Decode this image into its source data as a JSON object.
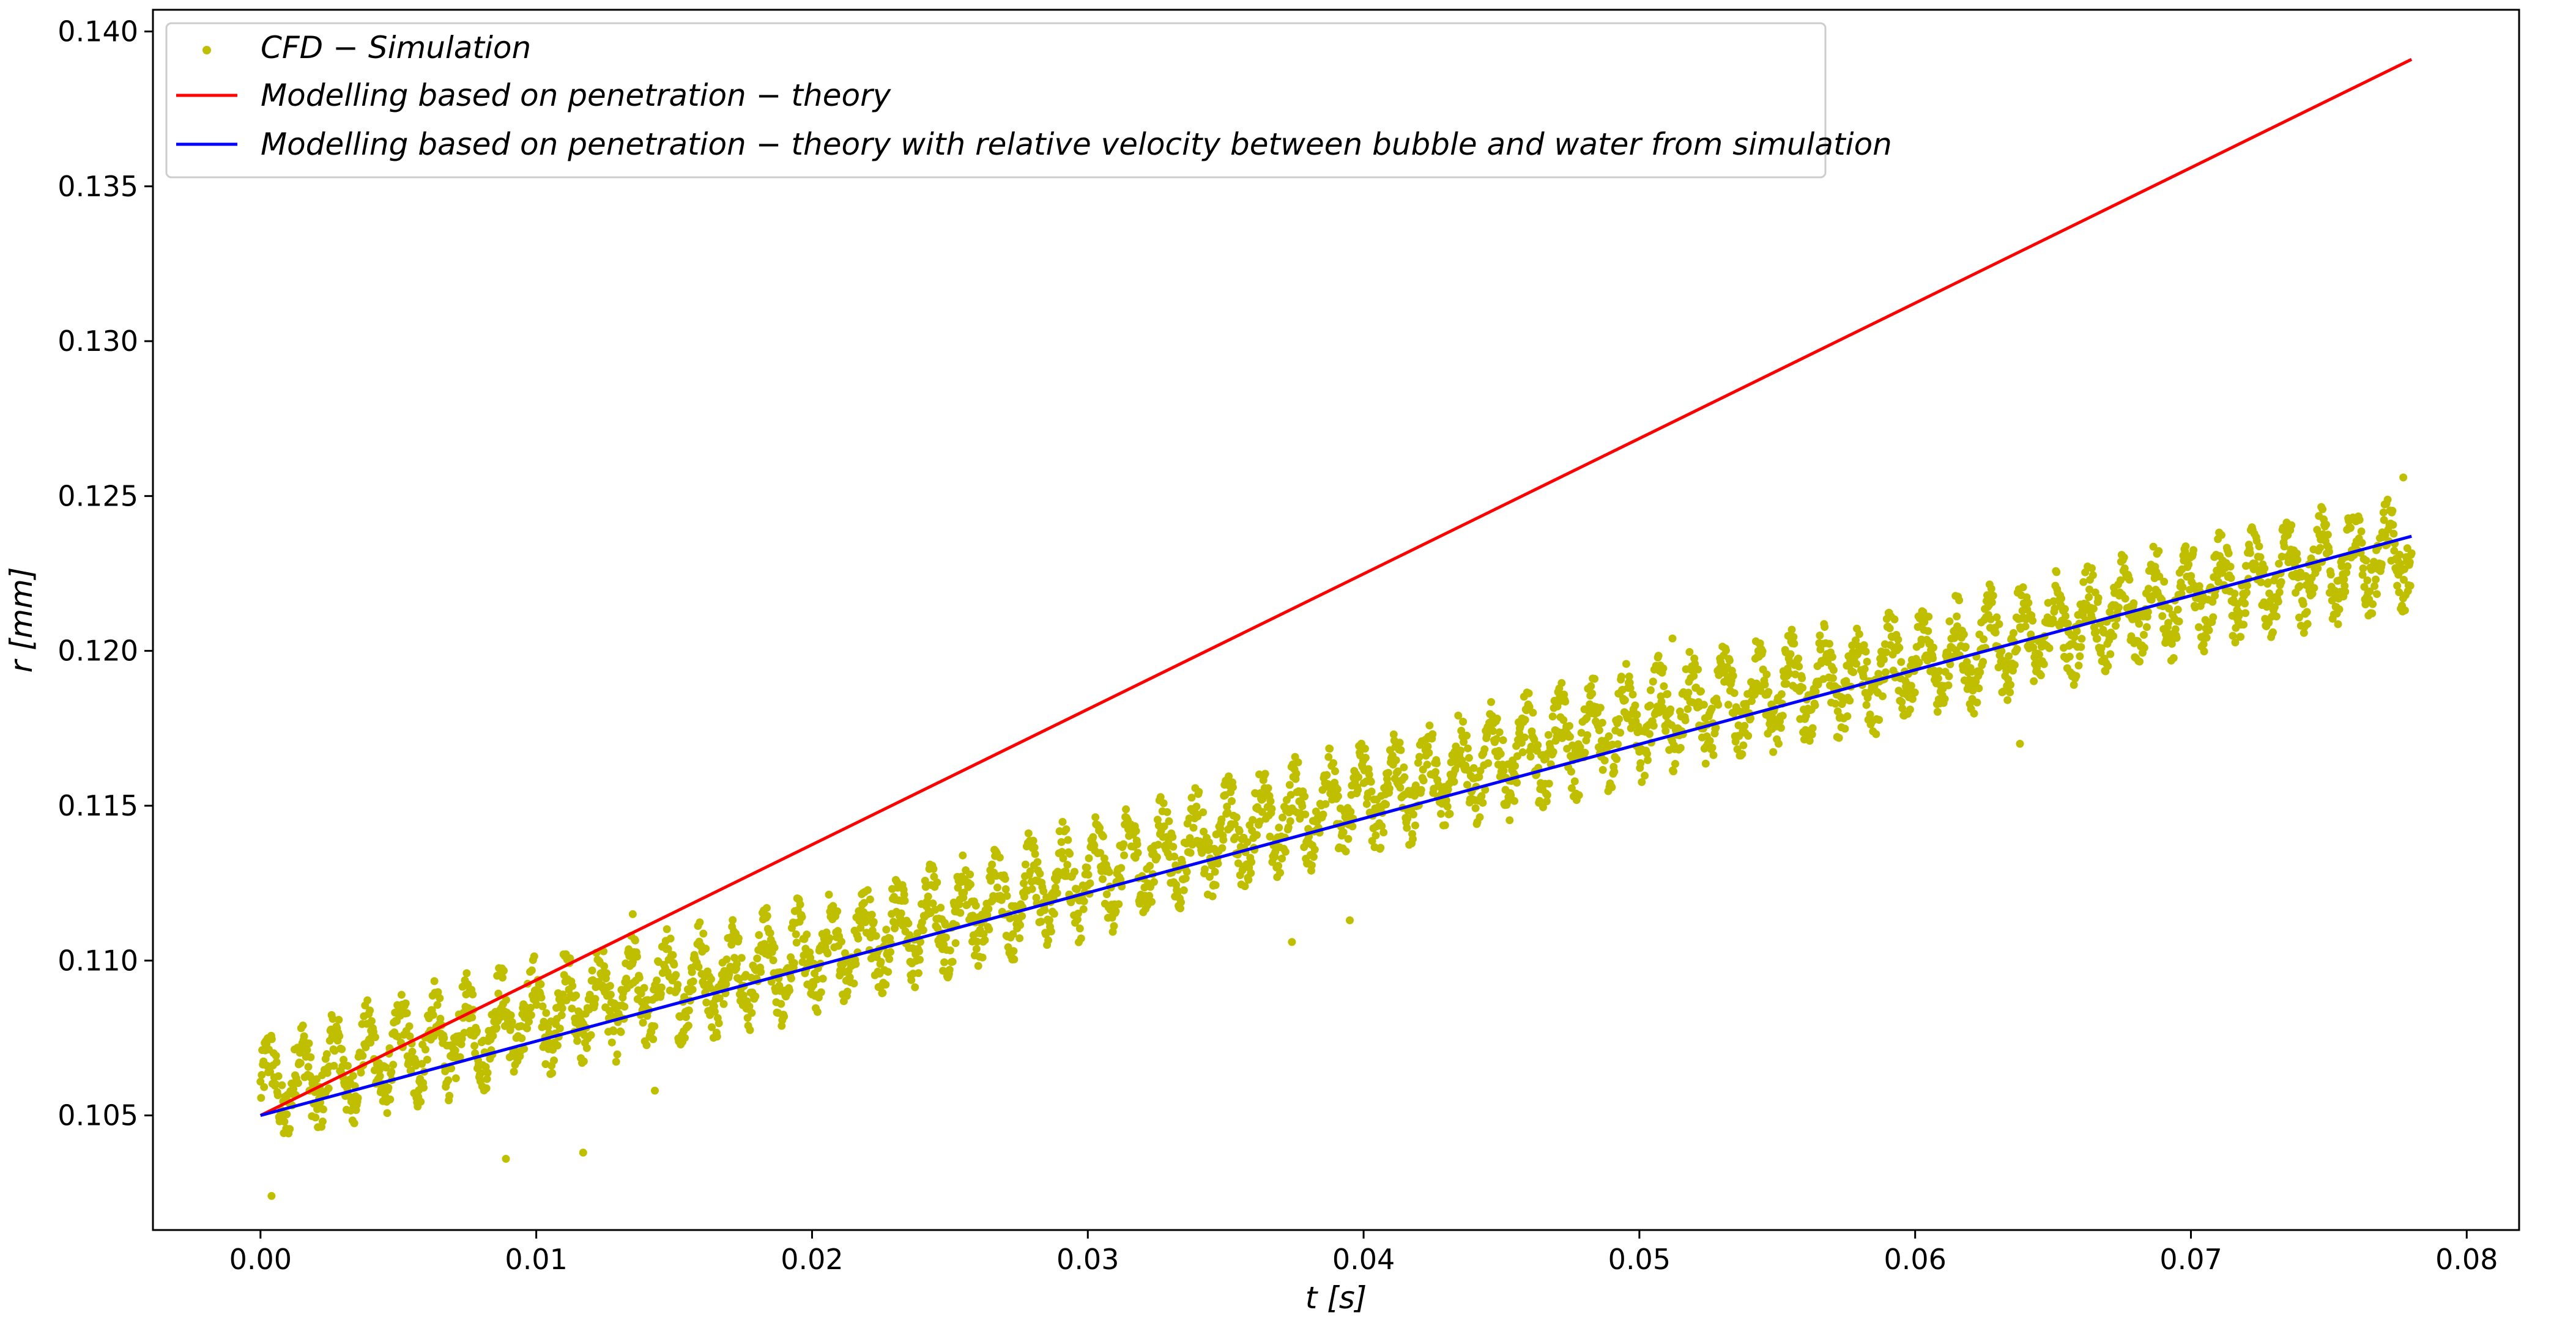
{
  "chart_data": {
    "type": "scatter",
    "xlabel": "t [s]",
    "ylabel": "r [mm]",
    "xlim": [
      -0.0039,
      0.0819
    ],
    "ylim": [
      0.1013,
      0.1407
    ],
    "xticks": [
      0.0,
      0.01,
      0.02,
      0.03,
      0.04,
      0.05,
      0.06,
      0.07,
      0.08
    ],
    "xtick_labels": [
      "0.00",
      "0.01",
      "0.02",
      "0.03",
      "0.04",
      "0.05",
      "0.06",
      "0.07",
      "0.08"
    ],
    "yticks": [
      0.105,
      0.11,
      0.115,
      0.12,
      0.125,
      0.13,
      0.135,
      0.14
    ],
    "ytick_labels": [
      "0.105",
      "0.110",
      "0.115",
      "0.120",
      "0.125",
      "0.130",
      "0.135",
      "0.140"
    ],
    "grid": false,
    "legend_position": "top-left",
    "series": [
      {
        "name": "CFD − Simulation",
        "kind": "scatter",
        "color": "#bfbf00",
        "x_range": [
          0.0,
          0.078
        ],
        "trend": [
          [
            0.0,
            0.1058
          ],
          [
            0.01,
            0.1082
          ],
          [
            0.02,
            0.1101
          ],
          [
            0.03,
            0.1127
          ],
          [
            0.04,
            0.1153
          ],
          [
            0.05,
            0.1177
          ],
          [
            0.06,
            0.1195
          ],
          [
            0.07,
            0.1218
          ],
          [
            0.078,
            0.1232
          ]
        ],
        "spread": 0.0017,
        "outliers": [
          [
            0.0004,
            0.1024
          ],
          [
            0.0089,
            0.1036
          ],
          [
            0.0117,
            0.1038
          ],
          [
            0.0143,
            0.1058
          ],
          [
            0.0135,
            0.1115
          ],
          [
            0.0374,
            0.1106
          ],
          [
            0.0395,
            0.1113
          ],
          [
            0.0512,
            0.1204
          ],
          [
            0.0638,
            0.117
          ],
          [
            0.0777,
            0.1256
          ]
        ]
      },
      {
        "name": "Modelling based on penetration − theory",
        "kind": "line",
        "color": "#ff0000",
        "points": [
          [
            0.0,
            0.105
          ],
          [
            0.078,
            0.1391
          ]
        ]
      },
      {
        "name": "Modelling based on penetration − theory with relative velocity between bubble and water from simulation",
        "kind": "line",
        "color": "#0000ff",
        "points": [
          [
            0.0,
            0.105
          ],
          [
            0.078,
            0.1237
          ]
        ]
      }
    ]
  }
}
